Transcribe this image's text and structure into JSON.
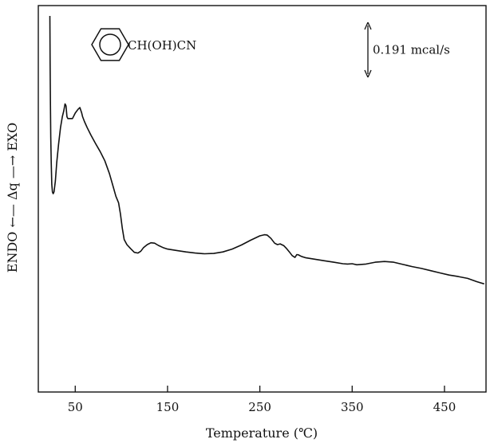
{
  "chart_data": {
    "type": "line",
    "title": "",
    "xlabel": "Temperature (℃)",
    "ylabel": "ENDO ←— Δq —→ EXO",
    "xlim": [
      10,
      495
    ],
    "x_ticks": [
      50,
      150,
      250,
      350,
      450
    ],
    "y_ticks": [],
    "y_units": "arbitrary (heat flow Δq)",
    "ylim": [
      0,
      100
    ],
    "grid": false,
    "legend": "none",
    "annotations": {
      "compound": "CH(OH)CN",
      "compound_ring": "benzene-ring",
      "scale_bar": "0.191 mcal/s",
      "scale_bar_span_y": 15
    },
    "series": [
      {
        "color": "#111111",
        "x": [
          22.5,
          22.8,
          23.1,
          23.5,
          24.0,
          24.6,
          25.3,
          26.1,
          27.0,
          28.5,
          30.0,
          32.0,
          34.0,
          36.0,
          37.5,
          39.0,
          40.0,
          41.0,
          42.0,
          44.0,
          47.0,
          50.0,
          53.0,
          55.0,
          57.0,
          58.0,
          60.0,
          63.0,
          67.0,
          72.0,
          77.0,
          82.0,
          87.0,
          91.0,
          94.0,
          97.0,
          99.0,
          101.0,
          103.0,
          106.0,
          110.0,
          114.0,
          118.0,
          121.0,
          124.0,
          128.0,
          132.0,
          136.0,
          140.0,
          145.0,
          150.0,
          160.0,
          170.0,
          180.0,
          190.0,
          200.0,
          210.0,
          220.0,
          230.0,
          240.0,
          250.0,
          255.0,
          258.0,
          262.0,
          266.0,
          269.0,
          272.0,
          276.0,
          279.0,
          282.0,
          285.0,
          288.0,
          290.0,
          292.0,
          294.0,
          296.0,
          300.0,
          310.0,
          320.0,
          330.0,
          340.0,
          345.0,
          350.0,
          355.0,
          365.0,
          375.0,
          385.0,
          395.0,
          405.0,
          415.0,
          425.0,
          435.0,
          445.0,
          455.0,
          465.0,
          475.0,
          485.0,
          493.0
        ],
        "y": [
          100.0,
          87.0,
          76.0,
          67.0,
          60.0,
          54.0,
          52.0,
          51.5,
          52.0,
          55.0,
          60.0,
          65.0,
          69.5,
          72.5,
          74.0,
          76.0,
          75.5,
          72.5,
          72.0,
          72.0,
          72.0,
          73.5,
          74.5,
          75.0,
          73.5,
          72.5,
          71.2,
          69.5,
          67.5,
          65.2,
          63.0,
          60.5,
          57.0,
          53.5,
          50.8,
          49.0,
          46.0,
          42.0,
          39.0,
          37.6,
          36.5,
          35.5,
          35.3,
          35.8,
          36.8,
          37.6,
          38.1,
          38.0,
          37.4,
          36.8,
          36.4,
          36.0,
          35.6,
          35.3,
          35.1,
          35.2,
          35.6,
          36.4,
          37.5,
          38.8,
          40.0,
          40.3,
          40.2,
          39.3,
          38.0,
          37.6,
          37.8,
          37.3,
          36.5,
          35.6,
          34.6,
          34.1,
          34.9,
          34.8,
          34.5,
          34.3,
          34.0,
          33.6,
          33.2,
          32.8,
          32.4,
          32.3,
          32.4,
          32.1,
          32.3,
          32.8,
          33.0,
          32.8,
          32.2,
          31.6,
          31.1,
          30.5,
          29.9,
          29.3,
          28.9,
          28.4,
          27.5,
          26.9
        ]
      }
    ]
  }
}
